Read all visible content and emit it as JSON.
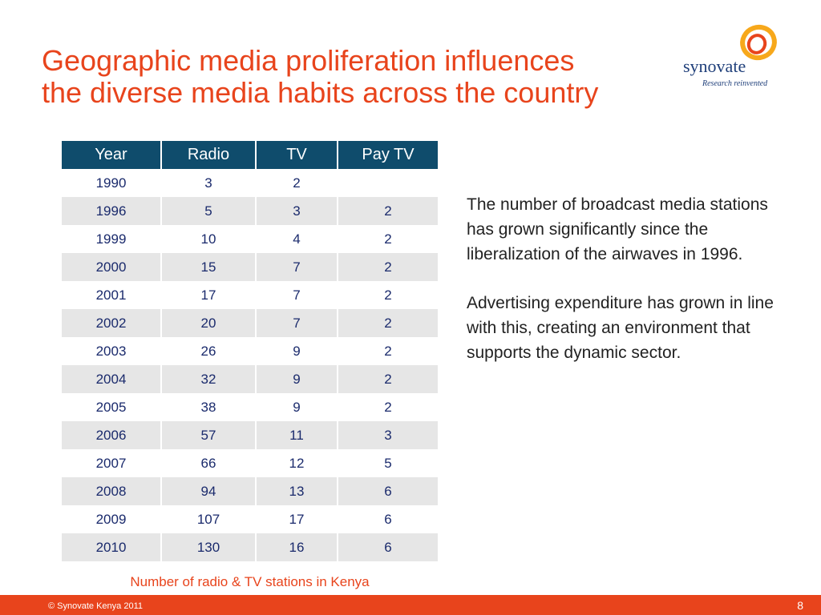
{
  "slide": {
    "title_lines": [
      "Geographic media proliferation influences",
      "the diverse media habits across the country"
    ],
    "logo": {
      "word": "synovate",
      "tagline": "Research reinvented",
      "colors": {
        "outer_ring": "#f7a81b",
        "inner_ring": "#e8441c",
        "text": "#1f3f7a"
      }
    },
    "table": {
      "headers": [
        "Year",
        "Radio",
        "TV",
        "Pay TV"
      ],
      "rows": [
        [
          "1990",
          "3",
          "2",
          ""
        ],
        [
          "1996",
          "5",
          "3",
          "2"
        ],
        [
          "1999",
          "10",
          "4",
          "2"
        ],
        [
          "2000",
          "15",
          "7",
          "2"
        ],
        [
          "2001",
          "17",
          "7",
          "2"
        ],
        [
          "2002",
          "20",
          "7",
          "2"
        ],
        [
          "2003",
          "26",
          "9",
          "2"
        ],
        [
          "2004",
          "32",
          "9",
          "2"
        ],
        [
          "2005",
          "38",
          "9",
          "2"
        ],
        [
          "2006",
          "57",
          "11",
          "3"
        ],
        [
          "2007",
          "66",
          "12",
          "5"
        ],
        [
          "2008",
          "94",
          "13",
          "6"
        ],
        [
          "2009",
          "107",
          "17",
          "6"
        ],
        [
          "2010",
          "130",
          "16",
          "6"
        ]
      ],
      "caption": "Number of radio & TV stations in Kenya"
    },
    "paragraphs": [
      "The number of broadcast media stations has grown significantly since the liberalization of the airwaves in 1996.",
      "Advertising expenditure has grown in line with this, creating an environment that supports the dynamic sector."
    ],
    "footer": {
      "copyright": "© Synovate Kenya 2011",
      "page_number": "8"
    },
    "colors": {
      "accent": "#e8441c",
      "table_header": "#0f4c6c",
      "stripe": "#e6e6e6"
    }
  }
}
